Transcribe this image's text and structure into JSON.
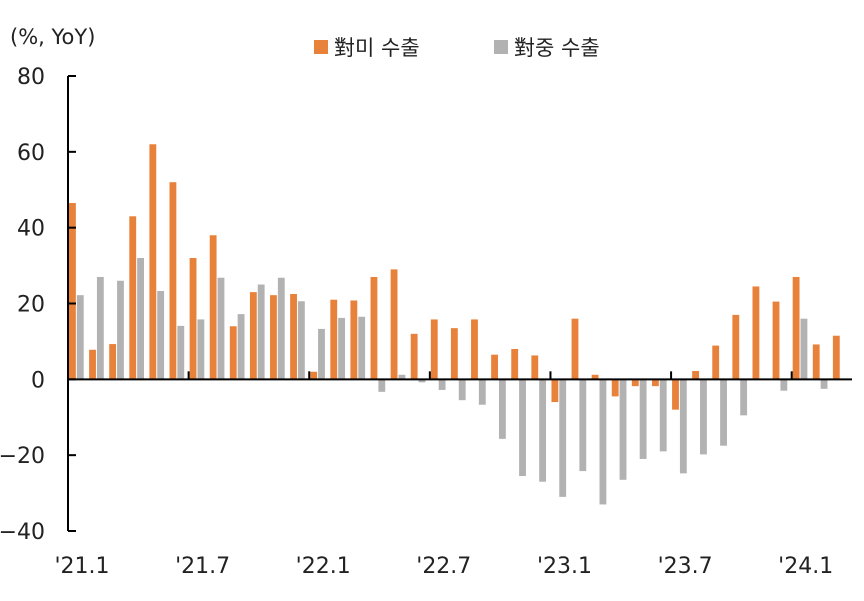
{
  "chart_data": {
    "type": "bar",
    "unit_label": "(%, YoY)",
    "ylim": [
      -40,
      80
    ],
    "y_ticks": [
      80,
      60,
      40,
      20,
      0,
      -20,
      -40
    ],
    "y_tick_labels": [
      "80",
      "60",
      "40",
      "20",
      "0",
      "−20",
      "−40"
    ],
    "x_tick_labels": [
      "'21.1",
      "'21.7",
      "'22.1",
      "'22.7",
      "'23.1",
      "'23.7",
      "'24.1"
    ],
    "x_tick_index": [
      0,
      6,
      12,
      18,
      24,
      30,
      36
    ],
    "legend_position": "top",
    "categories": [
      "21.1",
      "21.2",
      "21.3",
      "21.4",
      "21.5",
      "21.6",
      "21.7",
      "21.8",
      "21.9",
      "21.10",
      "21.11",
      "21.12",
      "22.1",
      "22.2",
      "22.3",
      "22.4",
      "22.5",
      "22.6",
      "22.7",
      "22.8",
      "22.9",
      "22.10",
      "22.11",
      "22.12",
      "23.1",
      "23.2",
      "23.3",
      "23.4",
      "23.5",
      "23.6",
      "23.7",
      "23.8",
      "23.9",
      "23.10",
      "23.11",
      "23.12",
      "24.1",
      "24.2",
      "24.3"
    ],
    "series": [
      {
        "name": "對미 수출",
        "color": "#E8823A",
        "values": [
          46.5,
          7.8,
          9.3,
          43,
          62,
          52,
          32,
          38,
          14,
          23,
          22.2,
          22.5,
          2,
          21,
          20.8,
          27,
          29,
          12,
          15.8,
          13.5,
          15.8,
          6.5,
          8,
          6.3,
          -6,
          16,
          1.2,
          -4.5,
          -1.8,
          -1.8,
          -8,
          2.2,
          8.9,
          17,
          24.5,
          20.5,
          27,
          9.2,
          11.5
        ]
      },
      {
        "name": "對중 수출",
        "color": "#B2B2B2",
        "values": [
          22.2,
          27,
          26,
          32,
          23.3,
          14.1,
          15.8,
          26.8,
          17.2,
          25,
          26.8,
          20.6,
          13.3,
          16.2,
          16.5,
          -3.3,
          1.2,
          -0.8,
          -2.8,
          -5.5,
          -6.7,
          -15.7,
          -25.5,
          -27,
          -31,
          -24.2,
          -33,
          -26.5,
          -21,
          -19,
          -24.8,
          -19.8,
          -17.5,
          -9.5,
          0,
          -3,
          16,
          -2.5,
          0
        ]
      }
    ]
  }
}
